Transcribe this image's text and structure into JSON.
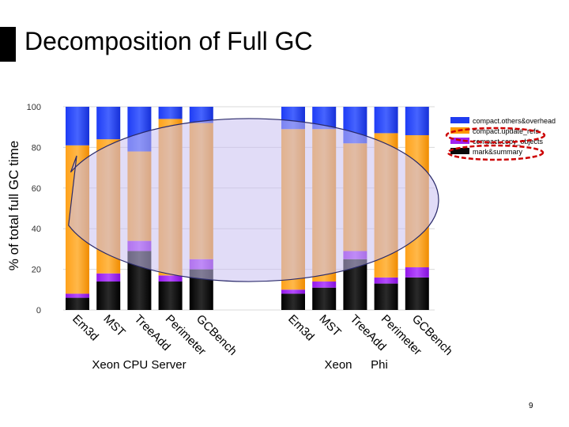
{
  "slide": {
    "title": "Decomposition of Full GC",
    "page_number": "9"
  },
  "chart_data": {
    "type": "bar",
    "stacked": true,
    "title": "",
    "xlabel": "",
    "ylabel": "% of total full GC time",
    "ylim": [
      0,
      100
    ],
    "yticks": [
      0,
      20,
      40,
      60,
      80,
      100
    ],
    "grid": true,
    "legend_position": "top-right",
    "groups": [
      {
        "name": "Xeon CPU Server",
        "categories": [
          "Em3d",
          "MST",
          "TreeAdd",
          "Perimeter",
          "GCBench"
        ]
      },
      {
        "name": "Xeon Phi",
        "name_parts": [
          "Xeon",
          "Phi"
        ],
        "categories": [
          "Em3d",
          "MST",
          "TreeAdd",
          "Perimeter",
          "GCBench"
        ]
      }
    ],
    "series": [
      {
        "name": "mark&summary",
        "color": "#0a0a0a",
        "values": [
          6,
          14,
          29,
          14,
          20,
          8,
          11,
          25,
          13,
          16
        ]
      },
      {
        "name": "compact.copy_objects",
        "color": "#a020f0",
        "values": [
          2,
          4,
          5,
          3,
          5,
          2,
          3,
          4,
          3,
          5
        ]
      },
      {
        "name": "compact.update_refs",
        "color": "#ff9900",
        "values": [
          73,
          66,
          44,
          77,
          67,
          79,
          75,
          53,
          71,
          65
        ]
      },
      {
        "name": "compact.others&overhead",
        "color": "#1f3cf0",
        "values": [
          19,
          16,
          22,
          6,
          8,
          11,
          11,
          18,
          13,
          14
        ]
      }
    ],
    "legend_order": [
      "compact.others&overhead",
      "compact.update_refs",
      "compact.copy_objects",
      "mark&summary"
    ],
    "annotation": {
      "shape": "ellipse-callout",
      "fill": "#c8bff0",
      "stroke": "#2a2a6a",
      "opacity": 0.55
    },
    "legend_highlight_color": "#cc0000"
  }
}
